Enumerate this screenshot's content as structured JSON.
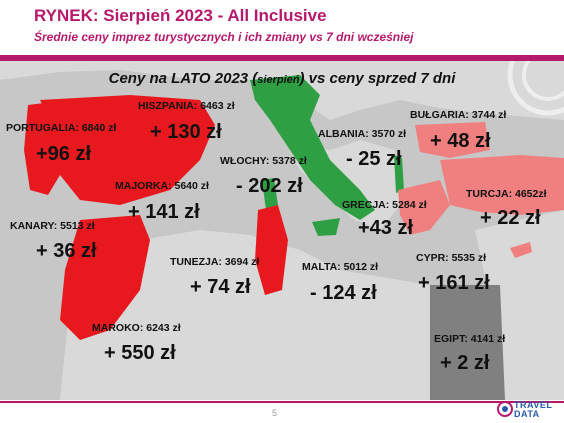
{
  "header": {
    "title": "RYNEK: Sierpień 2023 - All Inclusive",
    "subtitle": "Średnie ceny imprez turystycznych i ich zmiany vs 7 dni wcześniej"
  },
  "map": {
    "heading_pre": "Ceny na LATO 2023 (",
    "heading_small": "sierpień",
    "heading_post": ") vs ceny sprzed 7 dni",
    "destinations": [
      {
        "label": "PORTUGALIA: 6840 zł",
        "change": "+96 zł"
      },
      {
        "label": "HISZPANIA: 6463 zł",
        "change": "+ 130 zł"
      },
      {
        "label": "MAJORKA: 5640 zł",
        "change": "+ 141 zł"
      },
      {
        "label": "KANARY: 5513 zł",
        "change": "+ 36 zł"
      },
      {
        "label": "WŁOCHY: 5378 zł",
        "change": "- 202 zł"
      },
      {
        "label": "ALBANIA: 3570 zł",
        "change": "- 25 zł"
      },
      {
        "label": "BUŁGARIA: 3744 zł",
        "change": "+ 48 zł"
      },
      {
        "label": "TURCJA: 4652zł",
        "change": "+ 22 zł"
      },
      {
        "label": "GRECJA: 5284 zł",
        "change": "+43 zł"
      },
      {
        "label": "TUNEZJA: 3694 zł",
        "change": "+ 74 zł"
      },
      {
        "label": "MALTA: 5012 zł",
        "change": "- 124 zł"
      },
      {
        "label": "CYPR: 5535 zł",
        "change": "+ 161 zł"
      },
      {
        "label": "MAROKO: 6243 zł",
        "change": "+ 550 zł"
      },
      {
        "label": "EGIPT: 4141 zł",
        "change": "+ 2 zł"
      }
    ],
    "colors": {
      "increase_strong": "#e8191e",
      "increase_light": "#f08080",
      "decrease": "#2ea043",
      "land": "#d9d9d9",
      "sea": "#c7c7c7"
    }
  },
  "footer": {
    "page_number": "5",
    "logo_line1": "TRAVEL",
    "logo_line2": "DATA"
  }
}
